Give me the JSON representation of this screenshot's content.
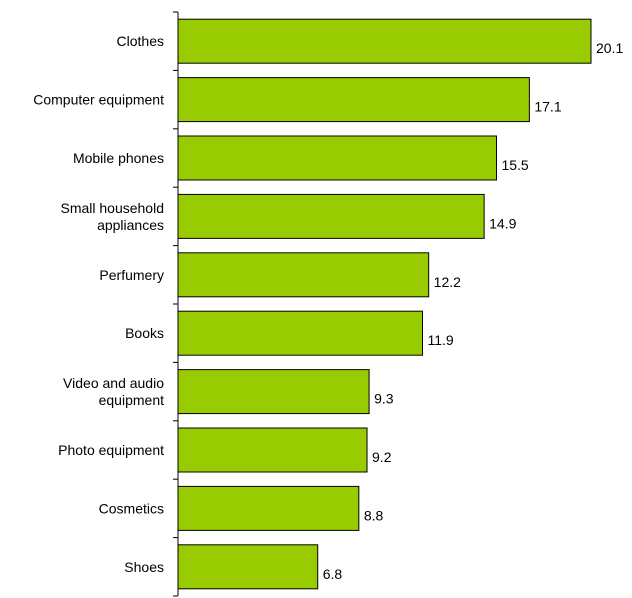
{
  "chart_data": {
    "type": "bar",
    "orientation": "horizontal",
    "title": "",
    "xlabel": "",
    "ylabel": "",
    "categories": [
      "Clothes",
      "Computer equipment",
      "Mobile phones",
      "Small household appliances",
      "Perfumery",
      "Books",
      "Video and audio equipment",
      "Photo equipment",
      "Cosmetics",
      "Shoes"
    ],
    "category_label_lines": [
      [
        "Clothes"
      ],
      [
        "Computer equipment"
      ],
      [
        "Mobile phones"
      ],
      [
        "Small household",
        "appliances"
      ],
      [
        "Perfumery"
      ],
      [
        "Books"
      ],
      [
        "Video and audio",
        "equipment"
      ],
      [
        "Photo equipment"
      ],
      [
        "Cosmetics"
      ],
      [
        "Shoes"
      ]
    ],
    "values": [
      20.1,
      17.1,
      15.5,
      14.9,
      12.2,
      11.9,
      9.3,
      9.2,
      8.8,
      6.8
    ],
    "data_labels": [
      "20.1",
      "17.1",
      "15.5",
      "14.9",
      "12.2",
      "11.9",
      "9.3",
      "9.2",
      "8.8",
      "6.8"
    ],
    "xlim": [
      0,
      20.1
    ],
    "grid": false,
    "legend": "none",
    "bar_color": "#99cc00",
    "bar_edge_color": "#000000"
  }
}
